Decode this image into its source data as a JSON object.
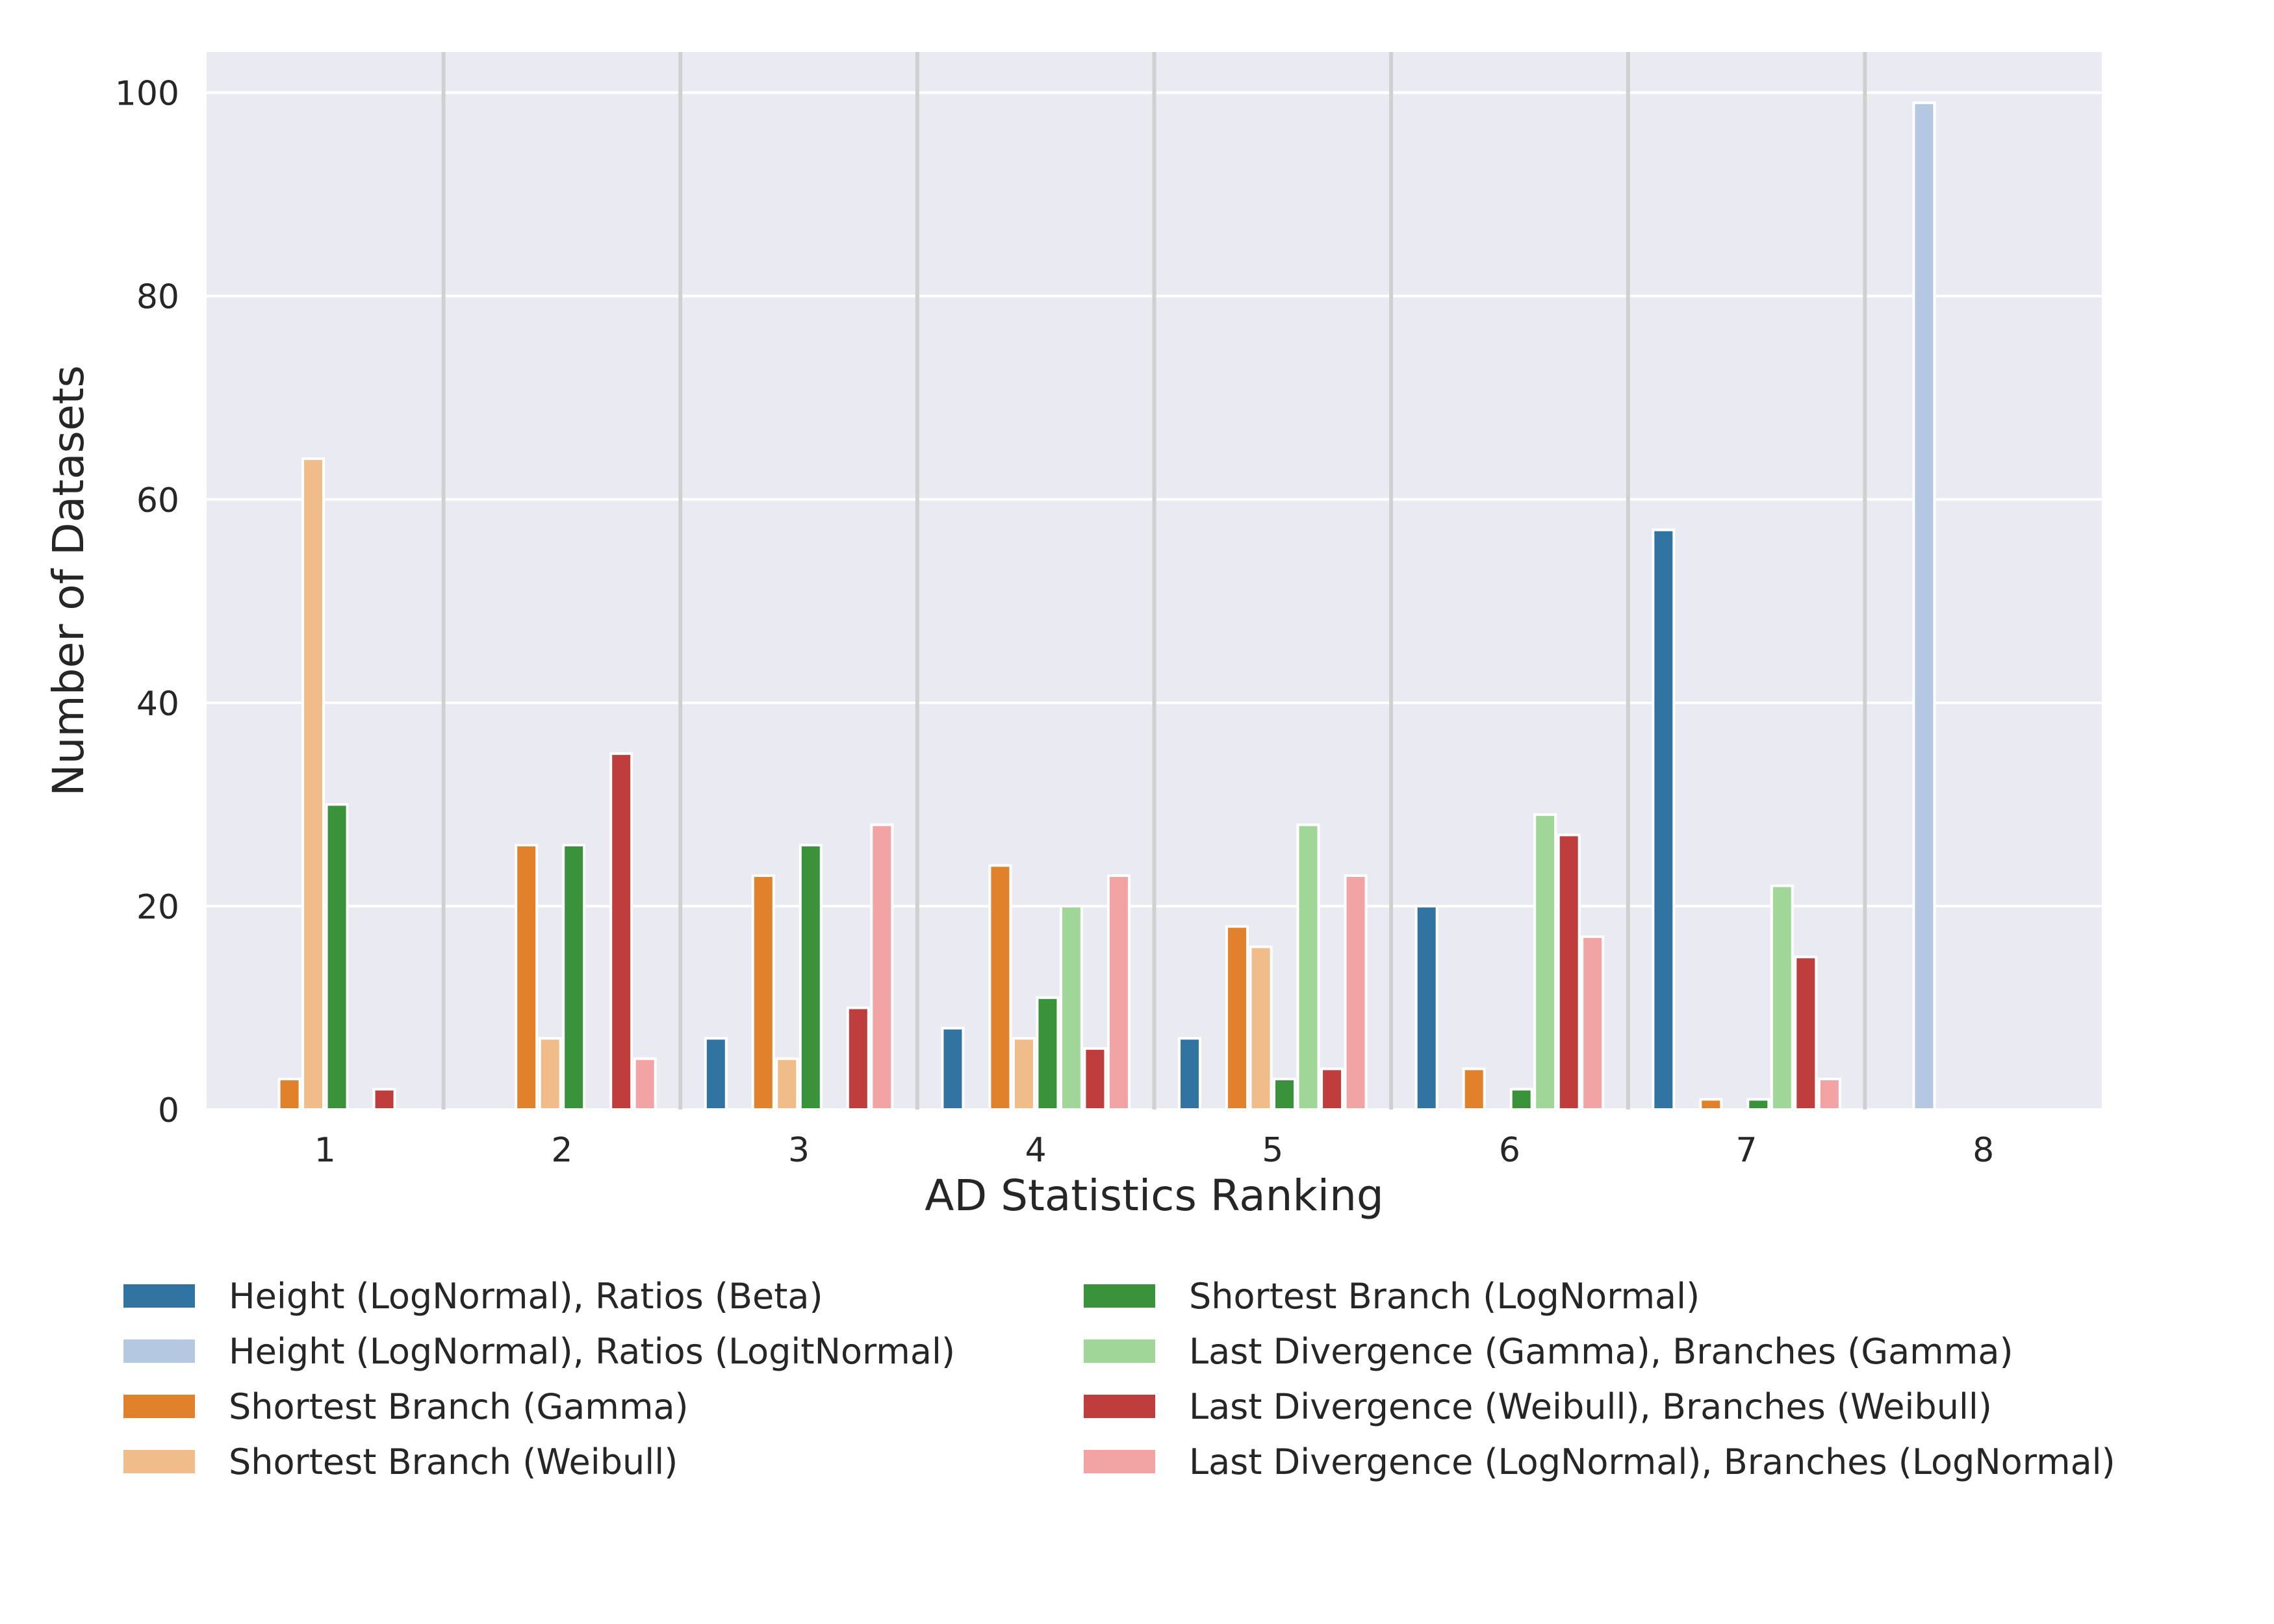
{
  "chart_data": {
    "type": "bar",
    "title": "",
    "xlabel": "AD Statistics Ranking",
    "ylabel": "Number of Datasets",
    "categories": [
      "1",
      "2",
      "3",
      "4",
      "5",
      "6",
      "7",
      "8"
    ],
    "ylim": [
      0,
      104
    ],
    "yticks": [
      0,
      20,
      40,
      60,
      80,
      100
    ],
    "grid": true,
    "legend_position": "bottom",
    "series": [
      {
        "name": "Height (LogNormal), Ratios (Beta)",
        "color": "#3274a1",
        "values": [
          0,
          0,
          7,
          8,
          7,
          20,
          57,
          0
        ]
      },
      {
        "name": "Height (LogNormal), Ratios (LogitNormal)",
        "color": "#b5c8e2",
        "values": [
          0,
          0,
          0,
          0,
          0,
          0,
          0,
          99
        ]
      },
      {
        "name": "Shortest Branch (Gamma)",
        "color": "#e1812c",
        "values": [
          3,
          26,
          23,
          24,
          18,
          4,
          1,
          0
        ]
      },
      {
        "name": "Shortest Branch (Weibull)",
        "color": "#f0bc8a",
        "values": [
          64,
          7,
          5,
          7,
          16,
          0,
          0,
          0
        ]
      },
      {
        "name": "Shortest Branch (LogNormal)",
        "color": "#3a923a",
        "values": [
          30,
          26,
          26,
          11,
          3,
          2,
          1,
          0
        ]
      },
      {
        "name": "Last Divergence (Gamma), Branches (Gamma)",
        "color": "#a1d699",
        "values": [
          0,
          0,
          0,
          20,
          28,
          29,
          22,
          0
        ]
      },
      {
        "name": "Last Divergence (Weibull), Branches (Weibull)",
        "color": "#c03d3e",
        "values": [
          2,
          35,
          10,
          6,
          4,
          27,
          15,
          0
        ]
      },
      {
        "name": "Last Divergence (LogNormal), Branches (LogNormal)",
        "color": "#f2a3a4",
        "values": [
          0,
          5,
          28,
          23,
          23,
          17,
          3,
          0
        ]
      }
    ],
    "colors": {
      "background": "#eaeaf2",
      "grid": "#ffffff",
      "separator": "#d0d0d0",
      "text": "#262626"
    }
  }
}
